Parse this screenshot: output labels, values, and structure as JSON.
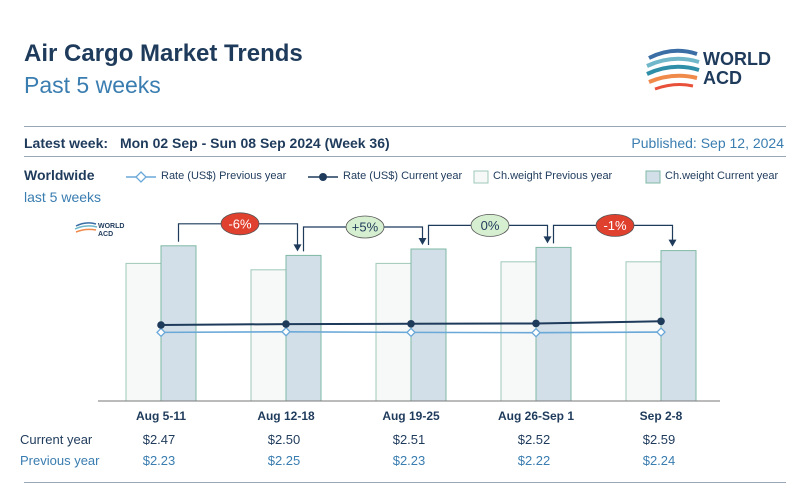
{
  "header": {
    "title": "Air Cargo Market Trends",
    "subtitle": "Past 5 weeks",
    "logo_text_line1": "WORLD",
    "logo_text_line2": "ACD",
    "latest_label": "Latest week:",
    "latest_value": "Mon 02 Sep - Sun 08 Sep 2024 (Week 36)",
    "published": "Published: Sep 12, 2024"
  },
  "section": {
    "title": "Worldwide",
    "subtitle": "last 5 weeks"
  },
  "colors": {
    "navy": "#1f3b5c",
    "light_blue": "#3a7db0",
    "bar_prev_fill": "#f7f9f9",
    "bar_prev_stroke": "#9fc9b8",
    "bar_cur_fill": "#d3dfe8",
    "bar_cur_stroke": "#7fb8a4",
    "line_prev": "#6aa8d8",
    "line_cur": "#1f3b5c",
    "badge_neg": "#e0412f",
    "badge_pos": "#d6efd0"
  },
  "chart_data": {
    "type": "bar",
    "categories": [
      "Aug 5-11",
      "Aug 12-18",
      "Aug 19-25",
      "Aug 26-Sep 1",
      "Sep 2-8"
    ],
    "series": [
      {
        "name": "Rate (US$) Previous year",
        "kind": "line",
        "values": [
          2.23,
          2.25,
          2.23,
          2.22,
          2.24
        ]
      },
      {
        "name": "Rate (US$) Current year",
        "kind": "line",
        "values": [
          2.47,
          2.5,
          2.51,
          2.52,
          2.59
        ]
      },
      {
        "name": "Ch.weight Previous year",
        "kind": "bar",
        "values": [
          86,
          82,
          86,
          87,
          87
        ]
      },
      {
        "name": "Ch.weight Current year",
        "kind": "bar",
        "values": [
          97,
          91,
          95,
          96,
          94
        ]
      }
    ],
    "changes": [
      {
        "label": "-6%",
        "sign": "neg"
      },
      {
        "label": "+5%",
        "sign": "pos"
      },
      {
        "label": "0%",
        "sign": "pos"
      },
      {
        "label": "-1%",
        "sign": "neg"
      }
    ],
    "bar_ylim": [
      0,
      100
    ],
    "rate_ylim": [
      0,
      5.2
    ],
    "grid": false,
    "legend": "top"
  },
  "table": {
    "current_label": "Current year",
    "previous_label": "Previous year",
    "current": [
      "$2.47",
      "$2.50",
      "$2.51",
      "$2.52",
      "$2.59"
    ],
    "previous": [
      "$2.23",
      "$2.25",
      "$2.23",
      "$2.22",
      "$2.24"
    ]
  }
}
